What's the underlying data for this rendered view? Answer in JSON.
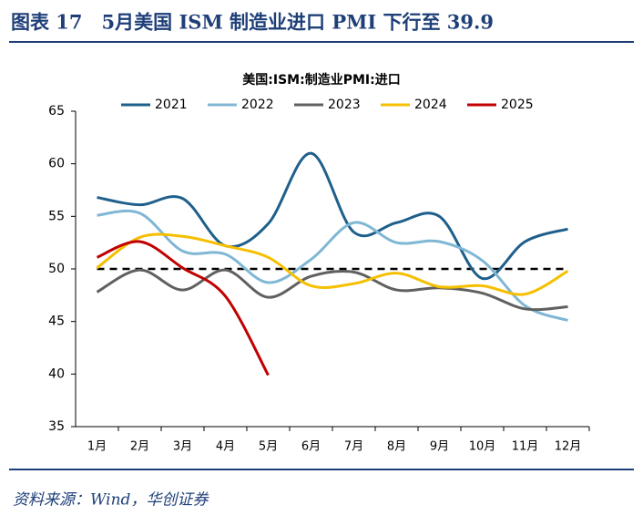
{
  "header": {
    "title": "图表 17　5月美国 ISM 制造业进口 PMI 下行至 39.9"
  },
  "chart_data": {
    "type": "line",
    "title": "美国:ISM:制造业PMI:进口",
    "categories": [
      "1月",
      "2月",
      "3月",
      "4月",
      "5月",
      "6月",
      "7月",
      "8月",
      "9月",
      "10月",
      "11月",
      "12月"
    ],
    "series": [
      {
        "name": "2021",
        "color": "#1f5f8b",
        "values": [
          56.8,
          56.1,
          56.7,
          52.2,
          54.3,
          61.0,
          53.5,
          54.4,
          55.0,
          49.1,
          52.6,
          53.8
        ]
      },
      {
        "name": "2022",
        "color": "#7fb7d4",
        "values": [
          55.1,
          55.3,
          51.7,
          51.4,
          48.7,
          50.9,
          54.4,
          52.5,
          52.6,
          50.8,
          46.5,
          45.1
        ]
      },
      {
        "name": "2023",
        "color": "#606060",
        "values": [
          47.8,
          49.9,
          48.0,
          49.9,
          47.3,
          49.3,
          49.7,
          48.0,
          48.2,
          47.7,
          46.2,
          46.4
        ]
      },
      {
        "name": "2024",
        "color": "#f5bf00",
        "values": [
          50.1,
          53.0,
          53.1,
          52.2,
          51.1,
          48.4,
          48.6,
          49.6,
          48.3,
          48.4,
          47.6,
          49.8
        ]
      },
      {
        "name": "2025",
        "color": "#c00000",
        "values": [
          51.1,
          52.6,
          50.1,
          47.4,
          39.9,
          null,
          null,
          null,
          null,
          null,
          null,
          null
        ]
      }
    ],
    "reference_line": 50,
    "ylim": [
      35,
      65
    ],
    "yticks": [
      35,
      40,
      45,
      50,
      55,
      60,
      65
    ],
    "grid": false,
    "legend": "top"
  },
  "source": "资料来源：Wind，华创证券"
}
